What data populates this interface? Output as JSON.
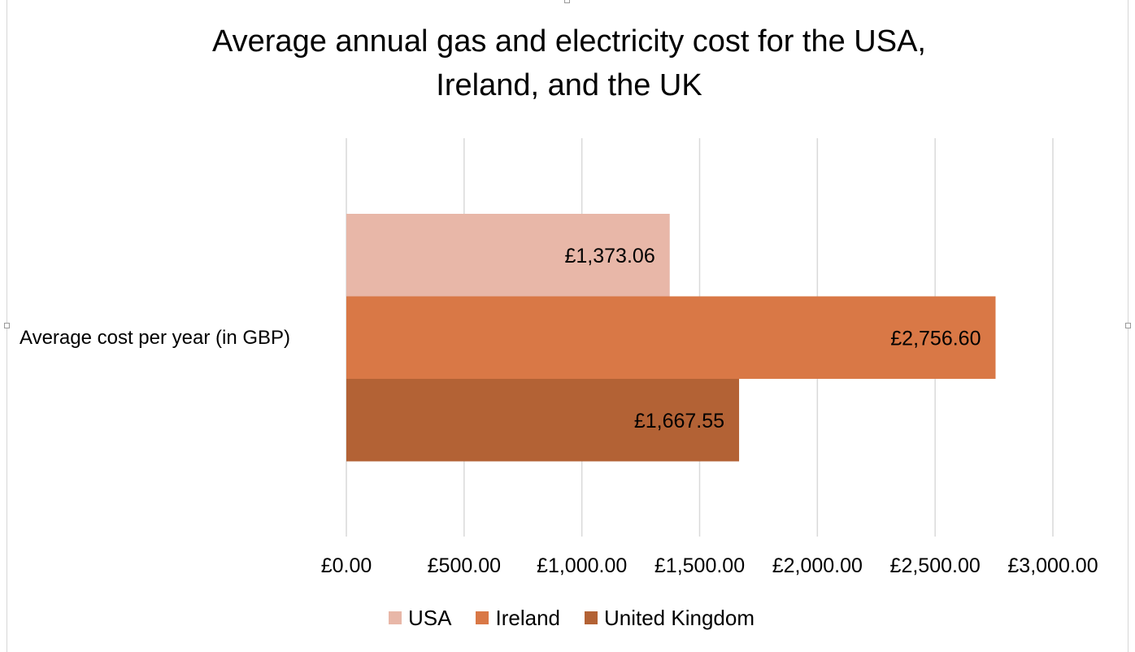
{
  "chart_data": {
    "type": "bar",
    "orientation": "horizontal",
    "title": "Average annual gas and electricity cost for the USA,\nIreland, and the UK",
    "categories": [
      "Average cost per year (in GBP)"
    ],
    "series": [
      {
        "name": "USA",
        "values": [
          1373.06
        ],
        "label": "£1,373.06",
        "color": "#e8b7a8"
      },
      {
        "name": "Ireland",
        "values": [
          2756.6
        ],
        "label": "£2,756.60",
        "color": "#d97846"
      },
      {
        "name": "United Kingdom",
        "values": [
          1667.55
        ],
        "label": "£1,667.55",
        "color": "#b36235"
      }
    ],
    "xlim": [
      0,
      3000
    ],
    "xticks": [
      0,
      500,
      1000,
      1500,
      2000,
      2500,
      3000
    ],
    "xtick_labels": [
      "£0.00",
      "£500.00",
      "£1,000.00",
      "£1,500.00",
      "£2,000.00",
      "£2,500.00",
      "£3,000.00"
    ],
    "grid": "vertical",
    "legend_position": "bottom"
  },
  "legend": {
    "items": [
      {
        "label": "USA",
        "color": "#e8b7a8"
      },
      {
        "label": "Ireland",
        "color": "#d97846"
      },
      {
        "label": "United Kingdom",
        "color": "#b36235"
      }
    ]
  },
  "colors": {
    "gridline": "#d9d9d9",
    "text": "#000000"
  }
}
